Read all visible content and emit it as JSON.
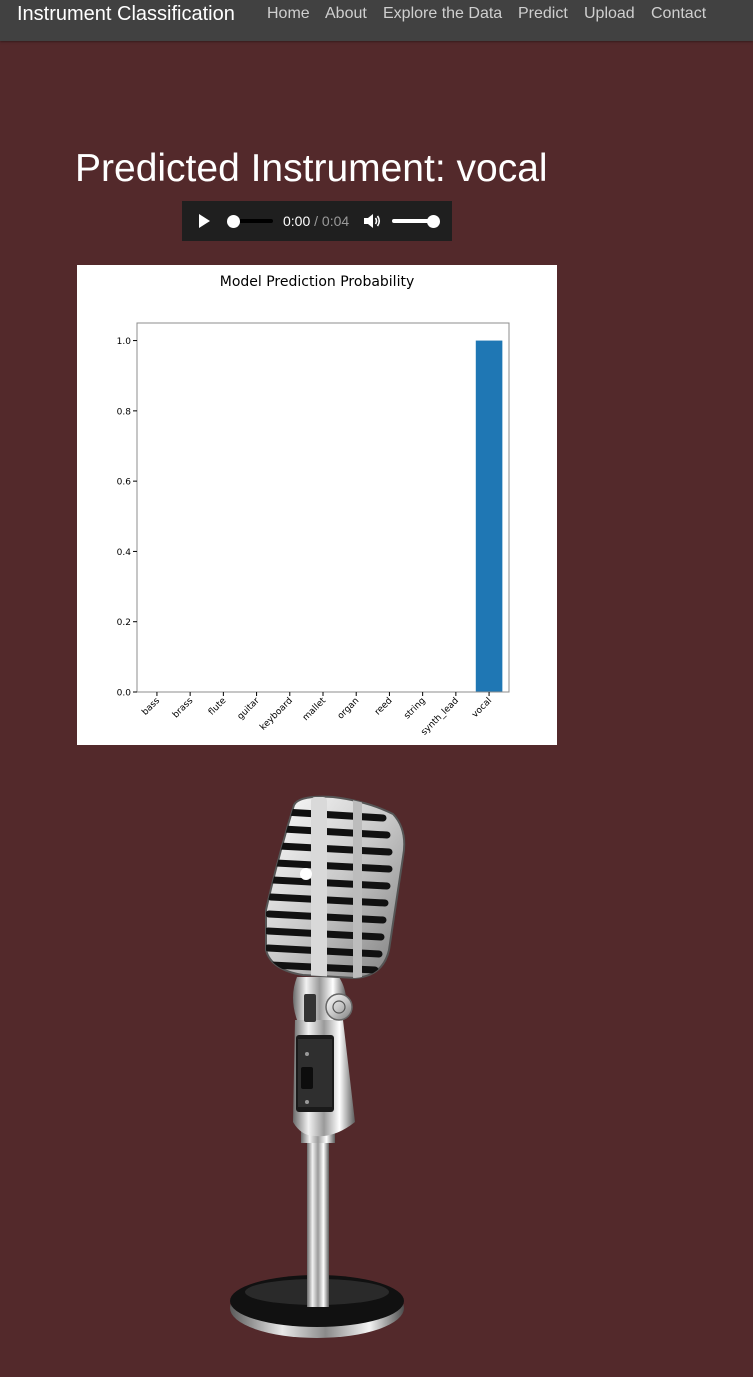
{
  "navbar": {
    "brand": "Instrument Classification",
    "links": [
      "Home",
      "About",
      "Explore the Data",
      "Predict",
      "Upload",
      "Contact"
    ]
  },
  "result": {
    "title": "Predicted Instrument: vocal"
  },
  "audio": {
    "current_time": "0:00",
    "separator": "/",
    "duration": "0:04",
    "progress": 0,
    "volume": 1.0
  },
  "colors": {
    "background": "#53292b",
    "navbar": "#414141",
    "bar": "#1f77b4"
  },
  "icons": {
    "play": "play-icon",
    "volume": "volume-icon",
    "microphone": "microphone-image"
  },
  "chart_data": {
    "type": "bar",
    "title": "Model Prediction Probability",
    "categories": [
      "bass",
      "brass",
      "flute",
      "guitar",
      "keyboard",
      "mallet",
      "organ",
      "reed",
      "string",
      "synth_lead",
      "vocal"
    ],
    "values": [
      0,
      0,
      0,
      0,
      0,
      0,
      0,
      0,
      0,
      0,
      1.0
    ],
    "yticks": [
      "0.0",
      "0.2",
      "0.4",
      "0.6",
      "0.8",
      "1.0"
    ],
    "ylim": [
      0,
      1.05
    ],
    "xlabel": "",
    "ylabel": "",
    "grid": false
  }
}
